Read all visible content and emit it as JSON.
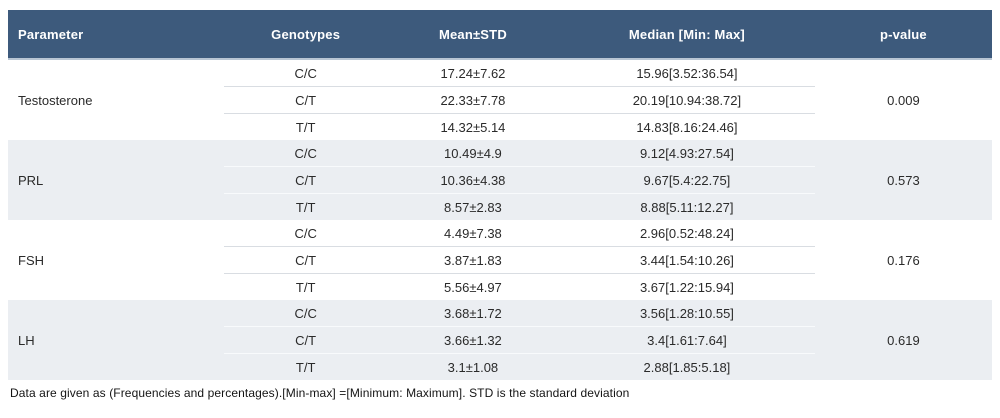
{
  "table": {
    "headers": {
      "parameter": "Parameter",
      "genotypes": "Genotypes",
      "mean_std": "Mean±STD",
      "median": "Median [Min: Max]",
      "p_value": "p-value"
    },
    "groups": [
      {
        "parameter": "Testosterone",
        "p_value": "0.009",
        "rows": [
          {
            "genotype": "C/C",
            "mean_std": "17.24±7.62",
            "median": "15.96[3.52:36.54]"
          },
          {
            "genotype": "C/T",
            "mean_std": "22.33±7.78",
            "median": "20.19[10.94:38.72]"
          },
          {
            "genotype": "T/T",
            "mean_std": "14.32±5.14",
            "median": "14.83[8.16:24.46]"
          }
        ]
      },
      {
        "parameter": "PRL",
        "p_value": "0.573",
        "rows": [
          {
            "genotype": "C/C",
            "mean_std": "10.49±4.9",
            "median": "9.12[4.93:27.54]"
          },
          {
            "genotype": "C/T",
            "mean_std": "10.36±4.38",
            "median": "9.67[5.4:22.75]"
          },
          {
            "genotype": "T/T",
            "mean_std": "8.57±2.83",
            "median": "8.88[5.11:12.27]"
          }
        ]
      },
      {
        "parameter": "FSH",
        "p_value": "0.176",
        "rows": [
          {
            "genotype": "C/C",
            "mean_std": "4.49±7.38",
            "median": "2.96[0.52:48.24]"
          },
          {
            "genotype": "C/T",
            "mean_std": "3.87±1.83",
            "median": "3.44[1.54:10.26]"
          },
          {
            "genotype": "T/T",
            "mean_std": "5.56±4.97",
            "median": "3.67[1.22:15.94]"
          }
        ]
      },
      {
        "parameter": "LH",
        "p_value": "0.619",
        "rows": [
          {
            "genotype": "C/C",
            "mean_std": "3.68±1.72",
            "median": "3.56[1.28:10.55]"
          },
          {
            "genotype": "C/T",
            "mean_std": "3.66±1.32",
            "median": "3.4[1.61:7.64]"
          },
          {
            "genotype": "T/T",
            "mean_std": "3.1±1.08",
            "median": "2.88[1.85:5.18]"
          }
        ]
      }
    ],
    "footnote": "Data are given as (Frequencies and percentages).[Min-max] =[Minimum: Maximum]. STD is the standard deviation"
  },
  "colors": {
    "header_bg": "#3d5a7c",
    "header_text": "#ffffff",
    "alt_group_bg": "#ebeef2",
    "row_separator": "#d9dde2"
  }
}
